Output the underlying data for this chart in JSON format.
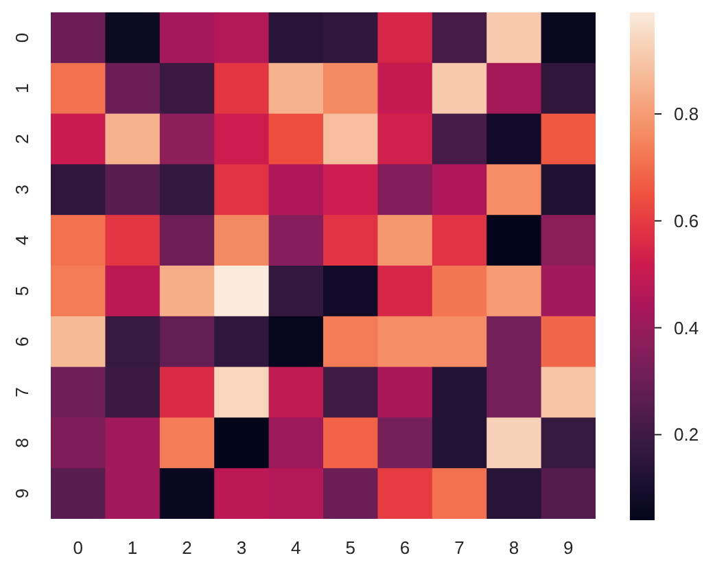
{
  "chart_data": {
    "type": "heatmap",
    "categories": [
      "0",
      "1",
      "2",
      "3",
      "4",
      "5",
      "6",
      "7",
      "8",
      "9"
    ],
    "y_categories": [
      "0",
      "1",
      "2",
      "3",
      "4",
      "5",
      "6",
      "7",
      "8",
      "9"
    ],
    "cells": [
      [
        0.3,
        0.07,
        0.43,
        0.46,
        0.14,
        0.16,
        0.55,
        0.22,
        0.91,
        0.06
      ],
      [
        0.71,
        0.3,
        0.19,
        0.59,
        0.85,
        0.76,
        0.5,
        0.91,
        0.43,
        0.16
      ],
      [
        0.51,
        0.85,
        0.38,
        0.52,
        0.64,
        0.88,
        0.53,
        0.22,
        0.08,
        0.66
      ],
      [
        0.16,
        0.26,
        0.17,
        0.58,
        0.45,
        0.52,
        0.35,
        0.45,
        0.77,
        0.12
      ],
      [
        0.71,
        0.59,
        0.31,
        0.76,
        0.36,
        0.58,
        0.79,
        0.58,
        0.04,
        0.37
      ],
      [
        0.73,
        0.48,
        0.84,
        0.99,
        0.17,
        0.08,
        0.55,
        0.72,
        0.8,
        0.42
      ],
      [
        0.87,
        0.18,
        0.28,
        0.16,
        0.05,
        0.73,
        0.77,
        0.77,
        0.32,
        0.69
      ],
      [
        0.31,
        0.19,
        0.56,
        0.94,
        0.49,
        0.2,
        0.44,
        0.13,
        0.32,
        0.9
      ],
      [
        0.34,
        0.42,
        0.73,
        0.04,
        0.41,
        0.68,
        0.32,
        0.13,
        0.93,
        0.18
      ],
      [
        0.26,
        0.42,
        0.06,
        0.48,
        0.46,
        0.3,
        0.6,
        0.71,
        0.14,
        0.25
      ]
    ],
    "clim": [
      0.04,
      0.99
    ],
    "cticks": [
      0.2,
      0.4,
      0.6,
      0.8
    ]
  }
}
